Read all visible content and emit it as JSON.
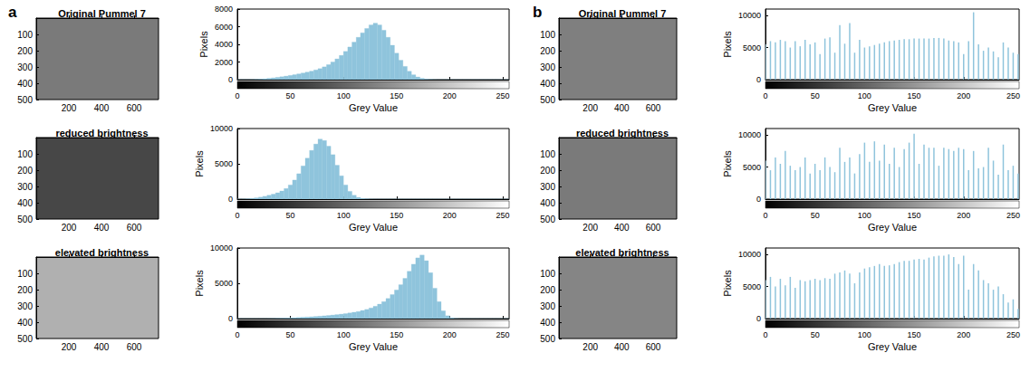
{
  "chart_data": [
    {
      "panel": "a",
      "type": "image",
      "title": "Original Pummel 7",
      "color": "#7a7a7a",
      "xlim": [
        0,
        750
      ],
      "ylim": [
        0,
        500
      ],
      "xticks": [
        200,
        400,
        600
      ],
      "yticks": [
        100,
        200,
        300,
        400,
        500
      ]
    },
    {
      "panel": "a",
      "type": "histogram",
      "xlabel": "Grey Value",
      "ylabel": "Pixels",
      "color": "#8fc4dc",
      "bins": [
        0,
        4,
        8,
        12,
        16,
        20,
        24,
        28,
        32,
        36,
        40,
        44,
        48,
        52,
        56,
        60,
        64,
        68,
        72,
        76,
        80,
        84,
        88,
        92,
        96,
        100,
        104,
        108,
        112,
        116,
        120,
        124,
        128,
        132,
        136,
        140,
        144,
        148,
        152,
        156,
        160,
        164,
        168,
        172,
        176,
        180,
        184,
        188,
        192,
        196,
        200,
        204,
        208,
        212,
        216,
        220,
        224,
        228,
        232,
        236,
        240,
        244,
        248,
        252,
        256
      ],
      "values": [
        0,
        0,
        0,
        10,
        30,
        60,
        100,
        150,
        200,
        260,
        330,
        400,
        480,
        560,
        650,
        750,
        850,
        960,
        1100,
        1250,
        1450,
        1700,
        2000,
        2350,
        2750,
        3200,
        3700,
        4250,
        4800,
        5300,
        5800,
        6200,
        6400,
        6200,
        5600,
        4800,
        3900,
        3000,
        2200,
        1500,
        950,
        550,
        300,
        150,
        70,
        30,
        10,
        0,
        0,
        0,
        0,
        0,
        0,
        0,
        0,
        0,
        0,
        0,
        0,
        0,
        0,
        0,
        0,
        0
      ],
      "xlim": [
        0,
        256
      ],
      "ylim": [
        0,
        8000
      ],
      "xticks": [
        0,
        50,
        100,
        150,
        200,
        250
      ],
      "yticks": [
        0,
        2000,
        4000,
        6000,
        8000
      ]
    },
    {
      "panel": "a",
      "type": "image",
      "title": "reduced brightness",
      "color": "#474747",
      "xlim": [
        0,
        750
      ],
      "ylim": [
        0,
        500
      ],
      "xticks": [
        200,
        400,
        600
      ],
      "yticks": [
        100,
        200,
        300,
        400,
        500
      ]
    },
    {
      "panel": "a",
      "type": "histogram",
      "xlabel": "Grey Value",
      "ylabel": "Pixels",
      "color": "#8fc4dc",
      "bins": [
        0,
        4,
        8,
        12,
        16,
        20,
        24,
        28,
        32,
        36,
        40,
        44,
        48,
        52,
        56,
        60,
        64,
        68,
        72,
        76,
        80,
        84,
        88,
        92,
        96,
        100,
        104,
        108,
        112,
        116,
        120,
        124,
        128,
        132,
        136,
        140,
        144,
        148,
        152,
        156,
        160,
        164,
        168,
        172,
        176,
        180,
        184,
        188,
        192,
        196,
        200,
        204,
        208,
        212,
        216,
        220,
        224,
        228,
        232,
        236,
        240,
        244,
        248,
        252,
        256
      ],
      "values": [
        0,
        10,
        40,
        100,
        180,
        280,
        400,
        550,
        700,
        900,
        1150,
        1500,
        2000,
        2700,
        3600,
        4700,
        5800,
        6900,
        7800,
        8500,
        8300,
        7500,
        6300,
        4800,
        3300,
        2000,
        1100,
        550,
        250,
        100,
        40,
        10,
        0,
        0,
        0,
        0,
        0,
        0,
        0,
        0,
        0,
        0,
        0,
        0,
        0,
        0,
        0,
        0,
        0,
        0,
        0,
        0,
        0,
        0,
        0,
        0,
        0,
        0,
        0,
        0,
        0,
        0,
        0,
        0
      ],
      "xlim": [
        0,
        256
      ],
      "ylim": [
        0,
        10000
      ],
      "xticks": [
        0,
        50,
        100,
        150,
        200,
        250
      ],
      "yticks": [
        0,
        5000,
        10000
      ]
    },
    {
      "panel": "a",
      "type": "image",
      "title": "elevated brightness",
      "color": "#b0b0b0",
      "xlim": [
        0,
        750
      ],
      "ylim": [
        0,
        500
      ],
      "xticks": [
        200,
        400,
        600
      ],
      "yticks": [
        100,
        200,
        300,
        400,
        500
      ]
    },
    {
      "panel": "a",
      "type": "histogram",
      "xlabel": "Grey Value",
      "ylabel": "Pixels",
      "color": "#8fc4dc",
      "bins": [
        0,
        4,
        8,
        12,
        16,
        20,
        24,
        28,
        32,
        36,
        40,
        44,
        48,
        52,
        56,
        60,
        64,
        68,
        72,
        76,
        80,
        84,
        88,
        92,
        96,
        100,
        104,
        108,
        112,
        116,
        120,
        124,
        128,
        132,
        136,
        140,
        144,
        148,
        152,
        156,
        160,
        164,
        168,
        172,
        176,
        180,
        184,
        188,
        192,
        196,
        200,
        204,
        208,
        212,
        216,
        220,
        224,
        228,
        232,
        236,
        240,
        244,
        248,
        252,
        256
      ],
      "values": [
        0,
        0,
        0,
        0,
        0,
        0,
        0,
        10,
        20,
        40,
        60,
        80,
        100,
        130,
        160,
        190,
        220,
        260,
        300,
        340,
        390,
        440,
        500,
        560,
        630,
        700,
        800,
        900,
        1000,
        1150,
        1300,
        1500,
        1750,
        2050,
        2400,
        2850,
        3400,
        4050,
        4800,
        5700,
        6700,
        7700,
        8600,
        9000,
        8200,
        6500,
        4300,
        2400,
        1100,
        400,
        120,
        30,
        0,
        0,
        0,
        0,
        0,
        0,
        0,
        0,
        0,
        0,
        0,
        0
      ],
      "xlim": [
        0,
        256
      ],
      "ylim": [
        0,
        10000
      ],
      "xticks": [
        0,
        50,
        100,
        150,
        200,
        250
      ],
      "yticks": [
        0,
        5000,
        10000
      ]
    },
    {
      "panel": "b",
      "type": "image",
      "title": "Original Pummel 7",
      "color": "#7f7f7f",
      "xlim": [
        0,
        750
      ],
      "ylim": [
        0,
        500
      ],
      "xticks": [
        200,
        400,
        600
      ],
      "yticks": [
        100,
        200,
        300,
        400,
        500
      ]
    },
    {
      "panel": "b",
      "type": "bar",
      "xlabel": "Grey Value",
      "ylabel": "Pixels",
      "color": "#8fc4dc",
      "x": [
        0,
        5,
        10,
        15,
        20,
        25,
        30,
        35,
        40,
        45,
        50,
        55,
        60,
        65,
        70,
        75,
        80,
        85,
        90,
        95,
        100,
        105,
        110,
        115,
        120,
        125,
        130,
        135,
        140,
        145,
        150,
        155,
        160,
        165,
        170,
        175,
        180,
        185,
        190,
        195,
        200,
        205,
        210,
        215,
        220,
        225,
        230,
        235,
        240,
        245,
        250,
        255
      ],
      "values": [
        5500,
        6000,
        5800,
        6200,
        6000,
        5000,
        6000,
        5200,
        6200,
        5500,
        5800,
        4000,
        6400,
        6600,
        4200,
        8500,
        5600,
        8800,
        4200,
        6200,
        5000,
        5200,
        5400,
        5600,
        5800,
        6000,
        6100,
        6200,
        6300,
        6300,
        6400,
        6400,
        6400,
        6400,
        6500,
        6500,
        6400,
        6100,
        6000,
        5800,
        4000,
        6000,
        10500,
        5500,
        4500,
        5000,
        4400,
        3500,
        5800,
        5000,
        4200,
        4000
      ],
      "xlim": [
        0,
        256
      ],
      "ylim": [
        0,
        11000
      ],
      "xticks": [
        0,
        50,
        100,
        150,
        200,
        250
      ],
      "yticks": [
        0,
        5000,
        10000
      ]
    },
    {
      "panel": "b",
      "type": "image",
      "title": "reduced brightness",
      "color": "#7a7a7a",
      "xlim": [
        0,
        750
      ],
      "ylim": [
        0,
        500
      ],
      "xticks": [
        200,
        400,
        600
      ],
      "yticks": [
        100,
        200,
        300,
        400,
        500
      ]
    },
    {
      "panel": "b",
      "type": "bar",
      "xlabel": "Grey Value",
      "ylabel": "Pixels",
      "color": "#8fc4dc",
      "x": [
        0,
        5,
        10,
        15,
        20,
        25,
        30,
        35,
        40,
        45,
        50,
        55,
        60,
        65,
        70,
        75,
        80,
        85,
        90,
        95,
        100,
        105,
        110,
        115,
        120,
        125,
        130,
        135,
        140,
        145,
        150,
        155,
        160,
        165,
        170,
        175,
        180,
        185,
        190,
        195,
        200,
        205,
        210,
        215,
        220,
        225,
        230,
        235,
        240,
        245,
        250,
        255
      ],
      "values": [
        6000,
        4500,
        6500,
        5500,
        7500,
        5200,
        4500,
        5000,
        6500,
        4000,
        5500,
        4500,
        6500,
        5000,
        4200,
        8000,
        5800,
        6500,
        4000,
        7000,
        8800,
        5800,
        9000,
        6000,
        8500,
        5500,
        8000,
        5000,
        7800,
        8800,
        10200,
        5500,
        8500,
        8000,
        8000,
        5200,
        8000,
        7800,
        7500,
        8000,
        7800,
        4500,
        7500,
        4800,
        5000,
        8000,
        6000,
        3800,
        8500,
        4500,
        5200,
        4000
      ],
      "xlim": [
        0,
        256
      ],
      "ylim": [
        0,
        11000
      ],
      "xticks": [
        0,
        50,
        100,
        150,
        200,
        250
      ],
      "yticks": [
        0,
        5000,
        10000
      ]
    },
    {
      "panel": "b",
      "type": "image",
      "title": "elevated brightness",
      "color": "#858585",
      "xlim": [
        0,
        750
      ],
      "ylim": [
        0,
        500
      ],
      "xticks": [
        200,
        400,
        600
      ],
      "yticks": [
        100,
        200,
        300,
        400,
        500
      ]
    },
    {
      "panel": "b",
      "type": "bar",
      "xlabel": "Grey Value",
      "ylabel": "Pixels",
      "color": "#8fc4dc",
      "x": [
        0,
        5,
        10,
        15,
        20,
        25,
        30,
        35,
        40,
        45,
        50,
        55,
        60,
        65,
        70,
        75,
        80,
        85,
        90,
        95,
        100,
        105,
        110,
        115,
        120,
        125,
        130,
        135,
        140,
        145,
        150,
        155,
        160,
        165,
        170,
        175,
        180,
        185,
        190,
        195,
        200,
        205,
        210,
        215,
        220,
        225,
        230,
        235,
        240,
        245,
        250,
        255
      ],
      "values": [
        6000,
        6500,
        5000,
        6200,
        5200,
        6500,
        4800,
        6000,
        5800,
        6000,
        6200,
        6000,
        6300,
        6200,
        7000,
        7200,
        7500,
        7000,
        5500,
        7200,
        7800,
        8000,
        8200,
        8500,
        8200,
        8300,
        8500,
        8800,
        9000,
        9000,
        9200,
        9300,
        9200,
        9500,
        9700,
        9800,
        9800,
        10000,
        9600,
        8500,
        9800,
        4500,
        8500,
        7500,
        6000,
        5500,
        4500,
        5000,
        3800,
        2500,
        3000,
        1500
      ],
      "xlim": [
        0,
        256
      ],
      "ylim": [
        0,
        11000
      ],
      "xticks": [
        0,
        50,
        100,
        150,
        200,
        250
      ],
      "yticks": [
        0,
        5000,
        10000
      ]
    }
  ]
}
